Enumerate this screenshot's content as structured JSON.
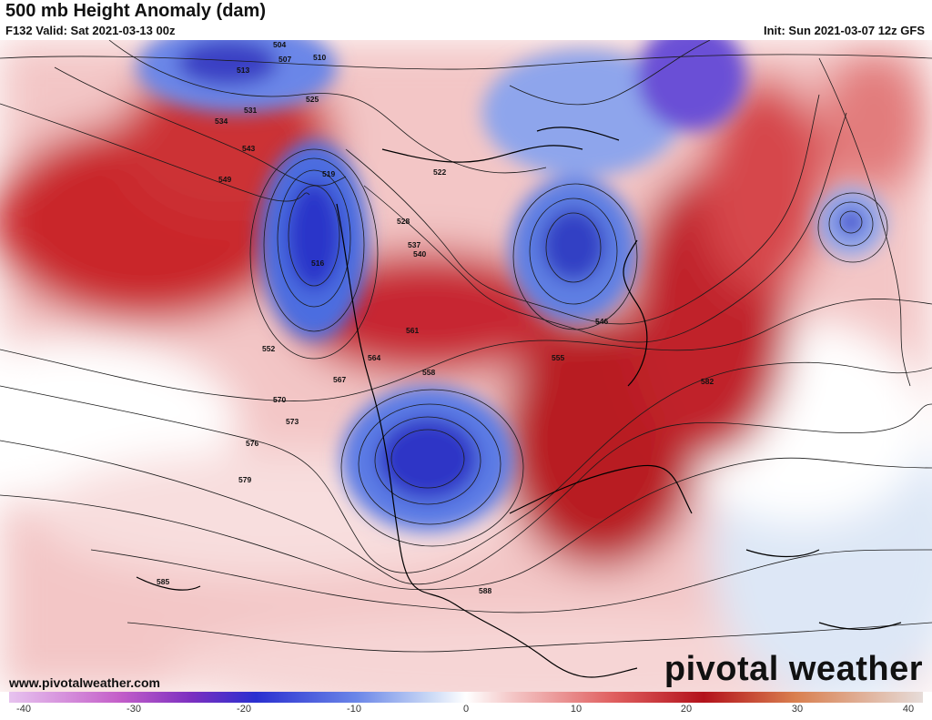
{
  "header": {
    "title": "500 mb Height Anomaly (dam)",
    "valid": "F132 Valid: Sat 2021-03-13 00z",
    "init": "Init: Sun 2021-03-07 12z GFS"
  },
  "footer": {
    "website": "www.pivotalweather.com",
    "brand": "pivotal weather"
  },
  "colorbar": {
    "ticks": [
      "-40",
      "-30",
      "-20",
      "-10",
      "0",
      "10",
      "20",
      "30",
      "40"
    ],
    "min": -40,
    "max": 40
  },
  "contour_labels": [
    "504",
    "507",
    "510",
    "513",
    "516",
    "519",
    "522",
    "525",
    "528",
    "531",
    "534",
    "537",
    "540",
    "543",
    "546",
    "549",
    "552",
    "555",
    "558",
    "561",
    "564",
    "567",
    "570",
    "573",
    "576",
    "579",
    "582",
    "585",
    "588"
  ],
  "colors": {
    "negative_strong": "#2a2fd0",
    "negative_mid": "#6b86e8",
    "negative_light": "#c9d8f5",
    "neutral": "#ffffff",
    "positive_light": "#f4c7c7",
    "positive_mid": "#e06060",
    "positive_strong": "#b3121b"
  }
}
